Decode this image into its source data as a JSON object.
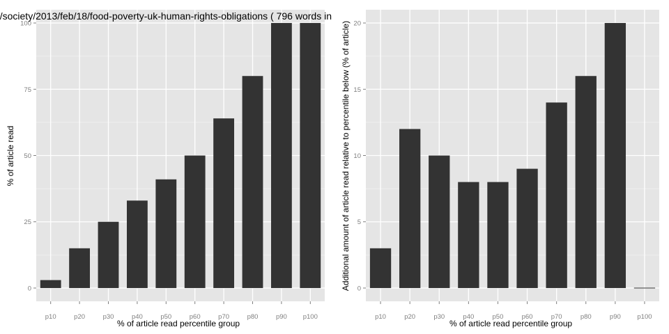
{
  "colors": {
    "panel_background": "#e5e5e5",
    "grid_major": "#ffffff",
    "grid_minor": "#f2f2f2",
    "bar": "#333333",
    "tick_text": "#7f7f7f"
  },
  "chart_data": [
    {
      "type": "bar",
      "title": "/society/2013/feb/18/food-poverty-uk-human-rights-obligations ( 796 words in",
      "xlabel": "% of article read percentile group",
      "ylabel": "% of article read",
      "categories": [
        "p10",
        "p20",
        "p30",
        "p40",
        "p50",
        "p60",
        "p70",
        "p80",
        "p90",
        "p100"
      ],
      "values": [
        3,
        15,
        25,
        33,
        41,
        50,
        64,
        80,
        100,
        100
      ],
      "yticks": [
        0,
        25,
        50,
        75,
        100
      ],
      "ylim": [
        -5,
        105
      ],
      "grid": true
    },
    {
      "type": "bar",
      "title": "",
      "xlabel": "% of article read percentile group",
      "ylabel": "Additional amount of article read relative to percentile below (% of article)",
      "categories": [
        "p10",
        "p20",
        "p30",
        "p40",
        "p50",
        "p60",
        "p70",
        "p80",
        "p90",
        "p100"
      ],
      "values": [
        3,
        12,
        10,
        8,
        8,
        9,
        14,
        16,
        20,
        0
      ],
      "yticks": [
        0,
        5,
        10,
        15,
        20
      ],
      "ylim": [
        -1,
        21
      ],
      "grid": true
    }
  ]
}
